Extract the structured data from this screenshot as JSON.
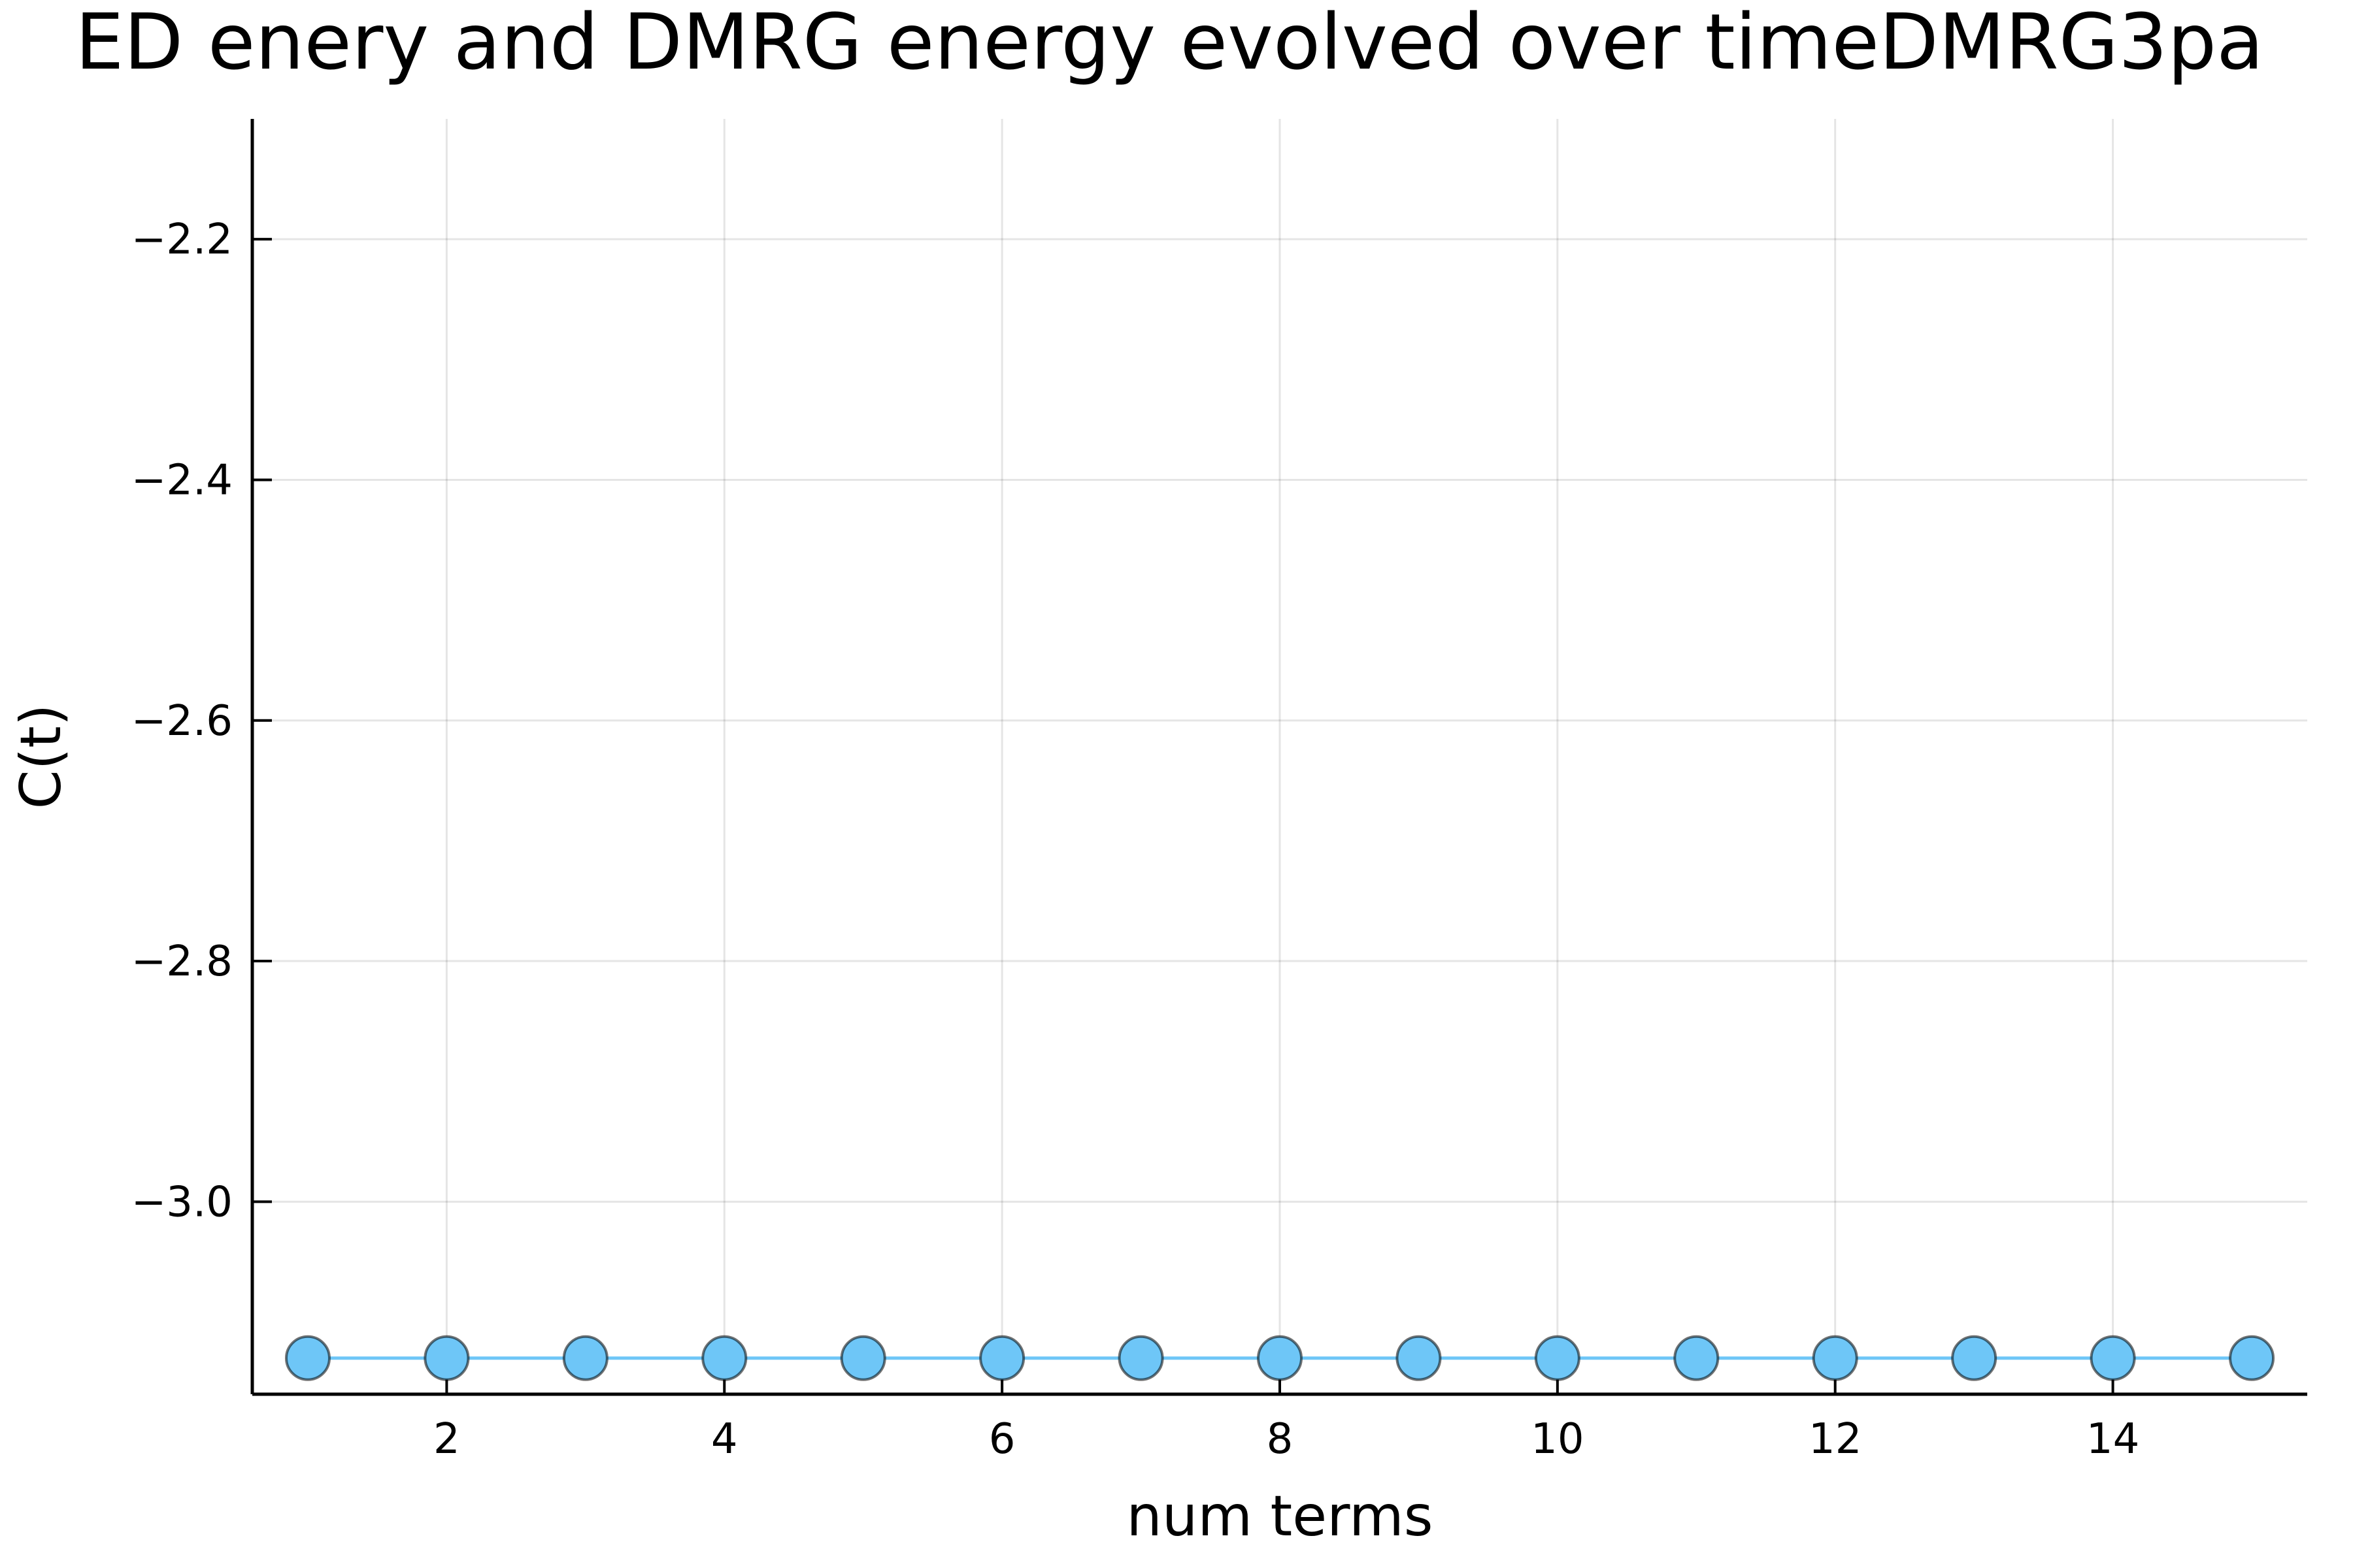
{
  "chart_data": {
    "type": "line",
    "title": "ED enery and DMRG energy evolved over timeDMRG3pa",
    "xlabel": "num terms",
    "ylabel": "C(t)",
    "xlim": [
      0.6,
      15.4
    ],
    "ylim": [
      -3.16,
      -2.1
    ],
    "xticks": [
      2,
      4,
      6,
      8,
      10,
      12,
      14
    ],
    "xtick_labels": [
      "2",
      "4",
      "6",
      "8",
      "10",
      "12",
      "14"
    ],
    "yticks": [
      -3.0,
      -2.8,
      -2.6,
      -2.4,
      -2.2
    ],
    "ytick_labels": [
      "−3.0",
      "−2.8",
      "−2.6",
      "−2.4",
      "−2.2"
    ],
    "grid": true,
    "legend": "none",
    "series": [
      {
        "color": "#6ec6f7",
        "marker": "circle",
        "x": [
          1,
          2,
          3,
          4,
          5,
          6,
          7,
          8,
          9,
          10,
          11,
          12,
          13,
          14,
          15
        ],
        "y": [
          -3.13,
          -3.13,
          -3.13,
          -3.13,
          -3.13,
          -3.13,
          -3.13,
          -3.13,
          -3.13,
          -3.13,
          -3.13,
          -3.13,
          -3.13,
          -3.13,
          -3.13
        ]
      }
    ]
  }
}
